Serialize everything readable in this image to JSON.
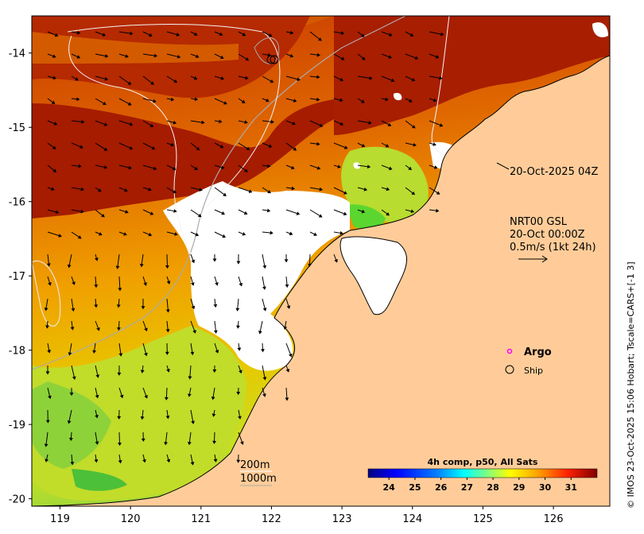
{
  "map": {
    "x_ticks": [
      "119",
      "120",
      "121",
      "122",
      "123",
      "124",
      "125",
      "126"
    ],
    "y_ticks": [
      "-14",
      "-15",
      "-16",
      "-17",
      "-18",
      "-19",
      "-20"
    ],
    "x_range": [
      118.6,
      126.8
    ],
    "y_range": [
      -20.1,
      -13.5
    ],
    "land_color": "#ffcc99",
    "cloud_color": "#ffffff"
  },
  "annotations": {
    "time_label": "20-Oct-2025 04Z",
    "current_source": "NRT00 GSL",
    "current_time": "20-Oct 00:00Z",
    "scale_vector": "0.5m/s (1kt 24h)",
    "isobath_200": "200m",
    "isobath_1000": "1000m",
    "credit": "© IMOS 23-Oct-2025 15:06 Hobart; Tscale=CARS+[-1 3]"
  },
  "legend": {
    "argo_label": "Argo",
    "ship_label": "Ship",
    "argo_color": "#ff00ff"
  },
  "colorbar": {
    "title": "4h comp, p50, All Sats",
    "min": 23.2,
    "max": 32.0,
    "ticks": [
      "24",
      "25",
      "26",
      "27",
      "28",
      "29",
      "30",
      "31"
    ],
    "colors": [
      "#00007f",
      "#0000ff",
      "#007fff",
      "#00ffff",
      "#7fff7f",
      "#ffff00",
      "#ff7f00",
      "#ff0000",
      "#7f0000"
    ]
  }
}
